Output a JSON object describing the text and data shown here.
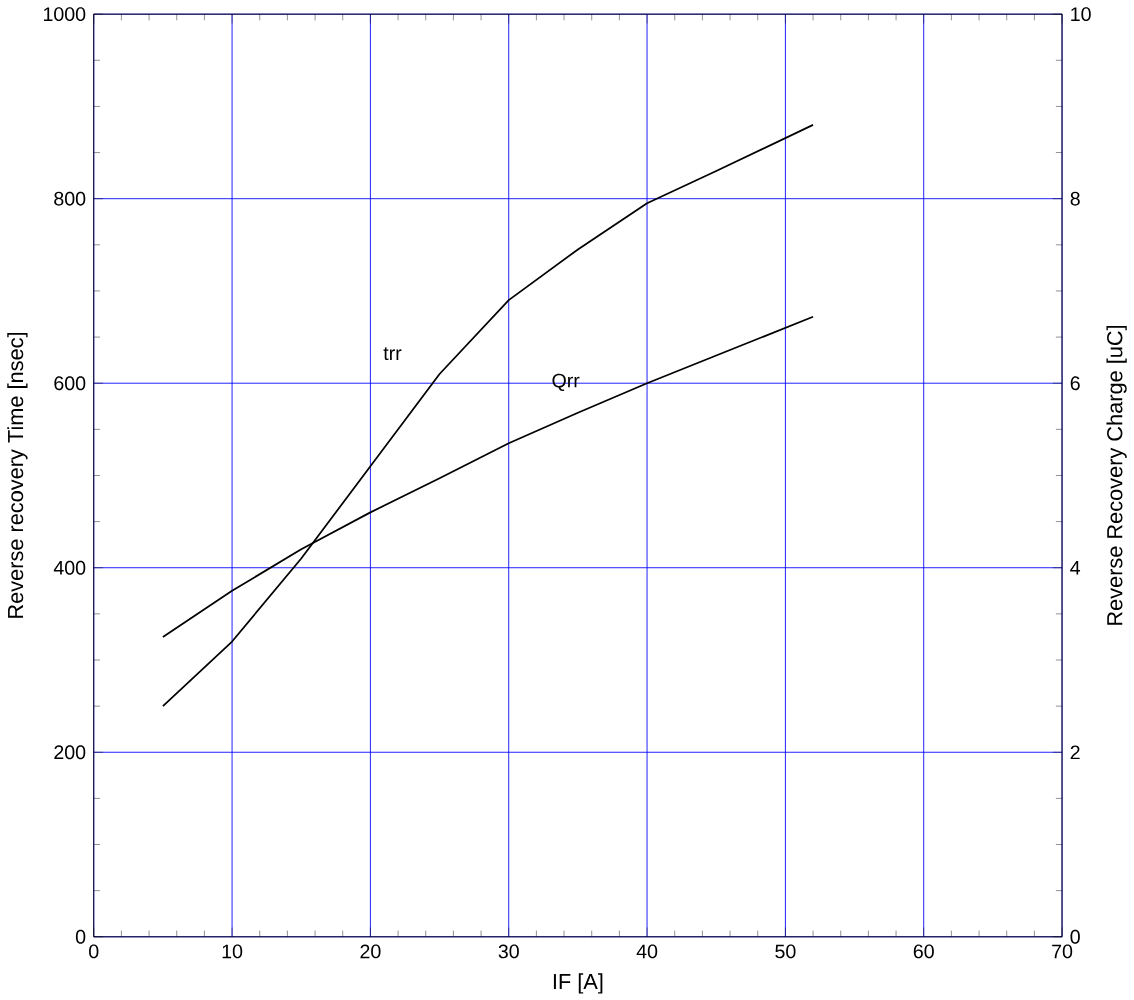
{
  "chart_data": {
    "type": "line",
    "xlabel": "IF [A]",
    "ylabel": "Reverse recovery Time [nsec]",
    "y2label": "Reverse Recovery Charge [uC]",
    "xlim": [
      0,
      70
    ],
    "xticks": [
      0,
      10,
      20,
      30,
      40,
      50,
      60,
      70
    ],
    "ylim": [
      0,
      1000
    ],
    "yticks": [
      0,
      200,
      400,
      600,
      800,
      1000
    ],
    "y2lim": [
      0,
      10
    ],
    "y2ticks": [
      0,
      2,
      4,
      6,
      8,
      10
    ],
    "grid": true,
    "marker": "none",
    "line_style": "solid",
    "series": [
      {
        "name": "trr",
        "color": "#000000",
        "x": [
          5,
          10,
          15,
          20,
          25,
          30,
          35,
          40,
          45,
          52
        ],
        "values": [
          250,
          320,
          410,
          510,
          610,
          690,
          745,
          795,
          830,
          880
        ]
      },
      {
        "name": "Qrr",
        "color": "#000000",
        "axis": "y2",
        "x": [
          5,
          10,
          15,
          20,
          25,
          30,
          35,
          40,
          45,
          52
        ],
        "values": [
          3.25,
          3.75,
          4.2,
          4.6,
          4.97,
          5.35,
          5.68,
          6.0,
          6.3,
          6.72
        ]
      }
    ]
  }
}
